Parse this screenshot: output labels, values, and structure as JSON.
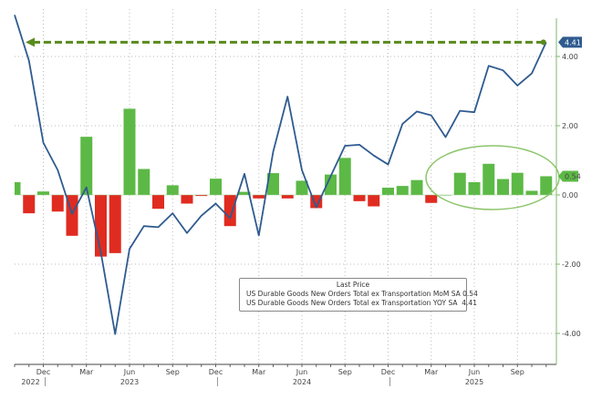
{
  "chart_data": {
    "type": "bar+line",
    "title": "",
    "x": [
      "Oct 2022",
      "Nov 2022",
      "Dec 2022",
      "Jan 2023",
      "Feb 2023",
      "Mar 2023",
      "Apr 2023",
      "May 2023",
      "Jun 2023",
      "Jul 2023",
      "Aug 2023",
      "Sep 2023",
      "Oct 2023",
      "Nov 2023",
      "Dec 2023",
      "Jan 2024",
      "Feb 2024",
      "Mar 2024",
      "Apr 2024",
      "May 2024",
      "Jun 2024",
      "Jul 2024",
      "Aug 2024",
      "Sep 2024",
      "Oct 2024",
      "Nov 2024",
      "Dec 2024",
      "Jan 2025",
      "Feb 2025",
      "Mar 2025",
      "Apr 2025",
      "May 2025",
      "Jun 2025",
      "Jul 2025",
      "Aug 2025",
      "Sep 2025",
      "Oct 2025",
      "Nov 2025"
    ],
    "series": [
      {
        "name": "US Durable Goods New Orders Total ex Transportation MoM SA",
        "type": "bar",
        "values": [
          0.37,
          -0.53,
          0.1,
          -0.48,
          -1.18,
          1.68,
          -1.78,
          -1.68,
          2.49,
          0.75,
          -0.4,
          0.28,
          -0.25,
          -0.03,
          0.47,
          -0.9,
          0.09,
          -0.1,
          0.63,
          -0.1,
          0.41,
          -0.38,
          0.59,
          1.07,
          -0.18,
          -0.33,
          0.21,
          0.26,
          0.43,
          -0.23,
          0.0,
          0.64,
          0.37,
          0.9,
          0.46,
          0.64,
          0.12,
          0.54
        ],
        "last": "0.54",
        "color_pos": "#5cb946",
        "color_neg": "#e02b20"
      },
      {
        "name": "US Durable Goods New Orders Total ex Transportation YOY SA",
        "type": "line",
        "values": [
          5.2,
          3.88,
          1.51,
          0.72,
          -0.55,
          0.22,
          -1.65,
          -4.02,
          -1.56,
          -0.9,
          -0.93,
          -0.53,
          -1.1,
          -0.6,
          -0.25,
          -0.67,
          0.61,
          -1.17,
          1.25,
          2.84,
          0.72,
          -0.36,
          0.54,
          1.42,
          1.45,
          1.14,
          0.88,
          2.05,
          2.41,
          2.3,
          1.67,
          2.43,
          2.39,
          3.73,
          3.6,
          3.16,
          3.51,
          4.41
        ],
        "last": "4.41",
        "color": "#2f5b8f"
      }
    ],
    "ylim": [
      -4.6,
      5.6
    ],
    "yticks": [
      "4.00",
      "2.00",
      "0.00",
      "-2.00",
      "-4.00"
    ],
    "ytick_values": [
      4,
      2,
      0,
      -2,
      -4
    ],
    "xticks": [
      {
        "label": "Dec",
        "index": 2,
        "year": "2022"
      },
      {
        "label": "Mar",
        "index": 5
      },
      {
        "label": "Jun",
        "index": 8,
        "year": "2023"
      },
      {
        "label": "Sep",
        "index": 11
      },
      {
        "label": "Dec",
        "index": 14
      },
      {
        "label": "Mar",
        "index": 17
      },
      {
        "label": "Jun",
        "index": 20,
        "year": "2024"
      },
      {
        "label": "Sep",
        "index": 23
      },
      {
        "label": "Dec",
        "index": 26
      },
      {
        "label": "Mar",
        "index": 29
      },
      {
        "label": "Jun",
        "index": 32,
        "year": "2025"
      },
      {
        "label": "Sep",
        "index": 35
      }
    ],
    "annotations": [
      "dashed arrow at 4.41 level pointing back to Oct 2022",
      "ellipse highlighting Apr–Nov 2025 bars"
    ],
    "grid": true,
    "legend_placement": "bottom-center"
  },
  "legend": {
    "title": "Last Price",
    "items": [
      {
        "label": "US Durable Goods New Orders Total ex Transportation MoM SA",
        "value": "0.54",
        "color": "#5cb946"
      },
      {
        "label": "US Durable Goods New Orders Total ex Transportation YOY SA",
        "value": "4.41",
        "color": "#2f5b8f"
      }
    ]
  }
}
